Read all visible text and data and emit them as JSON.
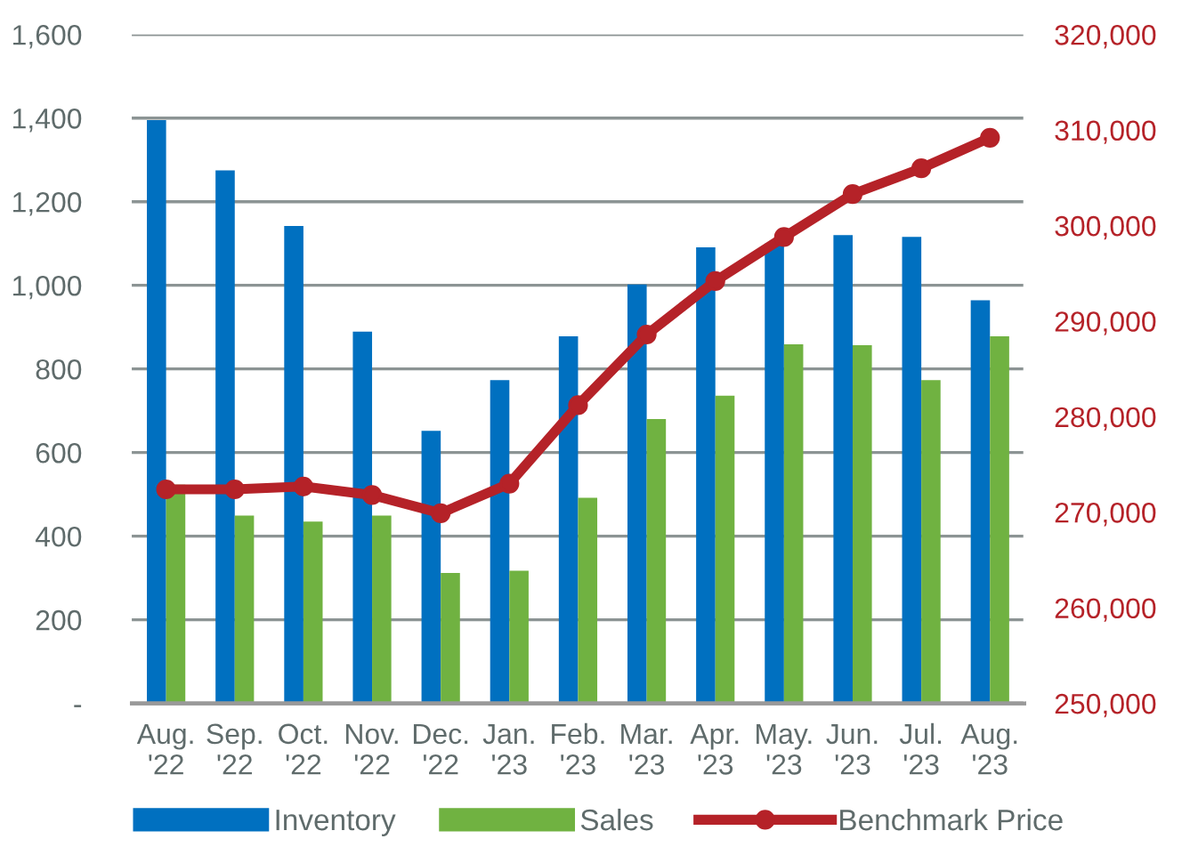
{
  "chart_data": {
    "type": "bar",
    "categories": [
      "Aug.\n'22",
      "Sep.\n'22",
      "Oct.\n'22",
      "Nov.\n'22",
      "Dec.\n'22",
      "Jan.\n'23",
      "Feb.\n'23",
      "Mar.\n'23",
      "Apr.\n'23",
      "May.\n'23",
      "Jun.\n'23",
      "Jul.\n'23",
      "Aug.\n'23"
    ],
    "series": [
      {
        "name": "Inventory",
        "color": "#0070c0",
        "values": [
          1395,
          1275,
          1142,
          889,
          652,
          773,
          878,
          1002,
          1091,
          1100,
          1120,
          1116,
          964
        ]
      },
      {
        "name": "Sales",
        "color": "#70b241",
        "values": [
          523,
          449,
          435,
          449,
          312,
          317,
          492,
          680,
          736,
          859,
          857,
          773,
          878
        ]
      },
      {
        "name": "Benchmark Price",
        "type": "line",
        "axis": "y2",
        "color": "#b52228",
        "values": [
          272400,
          272400,
          272700,
          271800,
          269900,
          273000,
          281200,
          288600,
          294200,
          298800,
          303300,
          306000,
          309200
        ]
      }
    ],
    "ylim": [
      0,
      1600
    ],
    "yticks": [
      {
        "value": 0,
        "label": "-"
      },
      200,
      400,
      600,
      800,
      {
        "value": 1000,
        "label": "1,000"
      },
      {
        "value": 1200,
        "label": "1,200"
      },
      {
        "value": 1400,
        "label": "1,400"
      },
      {
        "value": 1600,
        "label": "1,600"
      }
    ],
    "y2lim": [
      250000,
      320000
    ],
    "y2ticks": [
      {
        "value": 250000,
        "label": "250,000"
      },
      {
        "value": 260000,
        "label": "260,000"
      },
      {
        "value": 270000,
        "label": "270,000"
      },
      {
        "value": 280000,
        "label": "280,000"
      },
      {
        "value": 290000,
        "label": "290,000"
      },
      {
        "value": 300000,
        "label": "300,000"
      },
      {
        "value": 310000,
        "label": "310,000"
      },
      {
        "value": 320000,
        "label": "320,000"
      }
    ],
    "grid": "y",
    "legend": "bottom",
    "marker": "circle",
    "line_style": "solid"
  }
}
